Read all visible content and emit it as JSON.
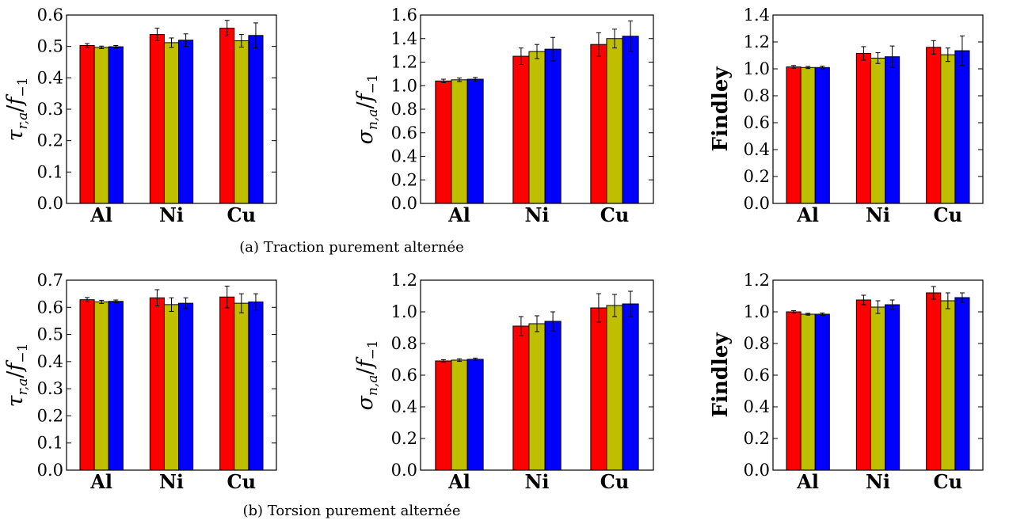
{
  "captions": {
    "a": "(a) Traction purement alternée",
    "b": "(b) Torsion purement alternée"
  },
  "colors": {
    "series1": "#ff0000",
    "series2": "#bfbf00",
    "series3": "#0000ff"
  },
  "chart_data": [
    {
      "type": "bar",
      "ylabel": "τr,a/f−1",
      "ylabel_parts": {
        "main": "τ",
        "sub": "r,a",
        "div": "/",
        "f": "f",
        "fsub": "−1"
      },
      "categories": [
        "Al",
        "Ni",
        "Cu"
      ],
      "ylim": [
        0,
        0.6
      ],
      "yticks": [
        "0.0",
        "0.1",
        "0.2",
        "0.3",
        "0.4",
        "0.5",
        "0.6"
      ],
      "series": [
        {
          "values": [
            0.503,
            0.538,
            0.558
          ],
          "errors": [
            0.006,
            0.02,
            0.025
          ]
        },
        {
          "values": [
            0.497,
            0.512,
            0.518
          ],
          "errors": [
            0.004,
            0.015,
            0.02
          ]
        },
        {
          "values": [
            0.499,
            0.52,
            0.535
          ],
          "errors": [
            0.004,
            0.02,
            0.04
          ]
        }
      ]
    },
    {
      "type": "bar",
      "ylabel": "σn,a/f−1",
      "ylabel_parts": {
        "main": "σ",
        "sub": "n,a",
        "div": "/",
        "f": "f",
        "fsub": "−1"
      },
      "categories": [
        "Al",
        "Ni",
        "Cu"
      ],
      "ylim": [
        0,
        1.6
      ],
      "yticks": [
        "0.0",
        "0.2",
        "0.4",
        "0.6",
        "0.8",
        "1.0",
        "1.2",
        "1.4",
        "1.6"
      ],
      "series": [
        {
          "values": [
            1.04,
            1.25,
            1.35
          ],
          "errors": [
            0.015,
            0.07,
            0.1
          ]
        },
        {
          "values": [
            1.05,
            1.29,
            1.4
          ],
          "errors": [
            0.015,
            0.06,
            0.08
          ]
        },
        {
          "values": [
            1.055,
            1.31,
            1.42
          ],
          "errors": [
            0.015,
            0.1,
            0.13
          ]
        }
      ]
    },
    {
      "type": "bar",
      "ylabel": "Findley",
      "categories": [
        "Al",
        "Ni",
        "Cu"
      ],
      "ylim": [
        0,
        1.4
      ],
      "yticks": [
        "0.0",
        "0.2",
        "0.4",
        "0.6",
        "0.8",
        "1.0",
        "1.2",
        "1.4"
      ],
      "series": [
        {
          "values": [
            1.015,
            1.115,
            1.16
          ],
          "errors": [
            0.01,
            0.05,
            0.05
          ]
        },
        {
          "values": [
            1.01,
            1.08,
            1.105
          ],
          "errors": [
            0.008,
            0.04,
            0.05
          ]
        },
        {
          "values": [
            1.01,
            1.09,
            1.135
          ],
          "errors": [
            0.01,
            0.08,
            0.11
          ]
        }
      ]
    },
    {
      "type": "bar",
      "ylabel": "τr,a/f−1",
      "ylabel_parts": {
        "main": "τ",
        "sub": "r,a",
        "div": "/",
        "f": "f",
        "fsub": "−1"
      },
      "categories": [
        "Al",
        "Ni",
        "Cu"
      ],
      "ylim": [
        0,
        0.7
      ],
      "yticks": [
        "0.0",
        "0.1",
        "0.2",
        "0.3",
        "0.4",
        "0.5",
        "0.6",
        "0.7"
      ],
      "series": [
        {
          "values": [
            0.628,
            0.635,
            0.638
          ],
          "errors": [
            0.008,
            0.03,
            0.04
          ]
        },
        {
          "values": [
            0.62,
            0.61,
            0.615
          ],
          "errors": [
            0.006,
            0.025,
            0.035
          ]
        },
        {
          "values": [
            0.622,
            0.615,
            0.62
          ],
          "errors": [
            0.005,
            0.02,
            0.03
          ]
        }
      ]
    },
    {
      "type": "bar",
      "ylabel": "σn,a/f−1",
      "ylabel_parts": {
        "main": "σ",
        "sub": "n,a",
        "div": "/",
        "f": "f",
        "fsub": "−1"
      },
      "categories": [
        "Al",
        "Ni",
        "Cu"
      ],
      "ylim": [
        0,
        1.2
      ],
      "yticks": [
        "0.0",
        "0.2",
        "0.4",
        "0.6",
        "0.8",
        "1.0",
        "1.2"
      ],
      "series": [
        {
          "values": [
            0.69,
            0.91,
            1.025
          ],
          "errors": [
            0.008,
            0.06,
            0.09
          ]
        },
        {
          "values": [
            0.695,
            0.925,
            1.04
          ],
          "errors": [
            0.008,
            0.05,
            0.07
          ]
        },
        {
          "values": [
            0.7,
            0.94,
            1.05
          ],
          "errors": [
            0.008,
            0.06,
            0.08
          ]
        }
      ]
    },
    {
      "type": "bar",
      "ylabel": "Findley",
      "categories": [
        "Al",
        "Ni",
        "Cu"
      ],
      "ylim": [
        0,
        1.2
      ],
      "yticks": [
        "0.0",
        "0.2",
        "0.4",
        "0.6",
        "0.8",
        "1.0",
        "1.2"
      ],
      "series": [
        {
          "values": [
            1.0,
            1.075,
            1.12
          ],
          "errors": [
            0.008,
            0.03,
            0.04
          ]
        },
        {
          "values": [
            0.985,
            1.03,
            1.07
          ],
          "errors": [
            0.006,
            0.04,
            0.05
          ]
        },
        {
          "values": [
            0.985,
            1.045,
            1.09
          ],
          "errors": [
            0.008,
            0.03,
            0.03
          ]
        }
      ]
    }
  ]
}
